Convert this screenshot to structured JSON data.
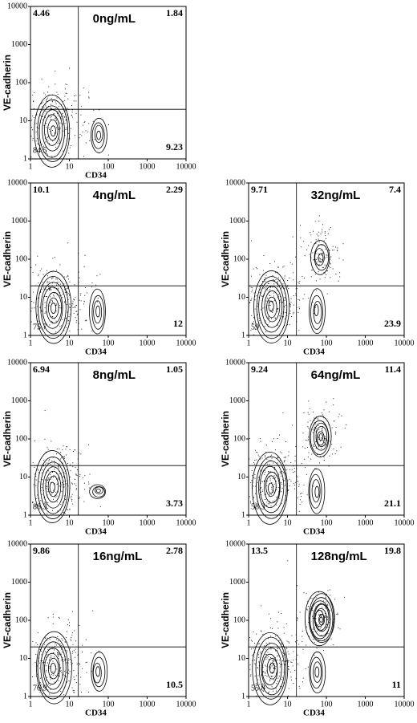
{
  "chart_data": [
    {
      "type": "contour",
      "title": "0ng/mL",
      "xlabel": "CD34",
      "ylabel": "VE-cadherin",
      "log_scale": true,
      "xlim": [
        1,
        10000
      ],
      "ylim": [
        1,
        10000
      ],
      "xticks": [
        1,
        10,
        100,
        1000,
        10000
      ],
      "yticks": [
        1,
        10,
        100,
        1000,
        10000
      ],
      "gate": {
        "x": 17,
        "y": 20
      },
      "quadrants": {
        "upper_left": 4.46,
        "upper_right": 1.84,
        "lower_left": 84.5,
        "lower_right": 9.23
      }
    },
    {
      "type": "contour",
      "title": "4ng/mL",
      "xlabel": "CD34",
      "ylabel": "VE-cadherin",
      "log_scale": true,
      "xlim": [
        1,
        10000
      ],
      "ylim": [
        1,
        10000
      ],
      "xticks": [
        1,
        10,
        100,
        1000,
        10000
      ],
      "yticks": [
        1,
        10,
        100,
        1000,
        10000
      ],
      "gate": {
        "x": 17,
        "y": 20
      },
      "quadrants": {
        "upper_left": 10.1,
        "upper_right": 2.29,
        "lower_left": 75.7,
        "lower_right": 12
      }
    },
    {
      "type": "contour",
      "title": "8ng/mL",
      "xlabel": "CD34",
      "ylabel": "VE-cadherin",
      "log_scale": true,
      "xlim": [
        1,
        10000
      ],
      "ylim": [
        1,
        10000
      ],
      "xticks": [
        1,
        10,
        100,
        1000,
        10000
      ],
      "yticks": [
        1,
        10,
        100,
        1000,
        10000
      ],
      "gate": {
        "x": 17,
        "y": 20
      },
      "quadrants": {
        "upper_left": 6.94,
        "upper_right": 1.05,
        "lower_left": 88.3,
        "lower_right": 3.73
      }
    },
    {
      "type": "contour",
      "title": "16ng/mL",
      "xlabel": "CD34",
      "ylabel": "VE-cadherin",
      "log_scale": true,
      "xlim": [
        1,
        10000
      ],
      "ylim": [
        1,
        10000
      ],
      "xticks": [
        1,
        10,
        100,
        1000,
        10000
      ],
      "yticks": [
        1,
        10,
        100,
        1000,
        10000
      ],
      "gate": {
        "x": 17,
        "y": 20
      },
      "quadrants": {
        "upper_left": 9.86,
        "upper_right": 2.78,
        "lower_left": 76.9,
        "lower_right": 10.5
      }
    },
    {
      "type": "contour",
      "title": "32ng/mL",
      "xlabel": "CD34",
      "ylabel": "VE-cadherin",
      "log_scale": true,
      "xlim": [
        1,
        10000
      ],
      "ylim": [
        1,
        10000
      ],
      "xticks": [
        1,
        10,
        100,
        1000,
        10000
      ],
      "yticks": [
        1,
        10,
        100,
        1000,
        10000
      ],
      "gate": {
        "x": 17,
        "y": 20
      },
      "quadrants": {
        "upper_left": 9.71,
        "upper_right": 7.4,
        "lower_left": 59,
        "lower_right": 23.9
      }
    },
    {
      "type": "contour",
      "title": "64ng/mL",
      "xlabel": "CD34",
      "ylabel": "VE-cadherin",
      "log_scale": true,
      "xlim": [
        1,
        10000
      ],
      "ylim": [
        1,
        10000
      ],
      "xticks": [
        1,
        10,
        100,
        1000,
        10000
      ],
      "yticks": [
        1,
        10,
        100,
        1000,
        10000
      ],
      "gate": {
        "x": 17,
        "y": 20
      },
      "quadrants": {
        "upper_left": 9.24,
        "upper_right": 11.4,
        "lower_left": 58.3,
        "lower_right": 21.1
      }
    },
    {
      "type": "contour",
      "title": "128ng/mL",
      "xlabel": "CD34",
      "ylabel": "VE-cadherin",
      "log_scale": true,
      "xlim": [
        1,
        10000
      ],
      "ylim": [
        1,
        10000
      ],
      "xticks": [
        1,
        10,
        100,
        1000,
        10000
      ],
      "yticks": [
        1,
        10,
        100,
        1000,
        10000
      ],
      "gate": {
        "x": 17,
        "y": 20
      },
      "quadrants": {
        "upper_left": 13.5,
        "upper_right": 19.8,
        "lower_left": 55.8,
        "lower_right": 11
      }
    }
  ]
}
